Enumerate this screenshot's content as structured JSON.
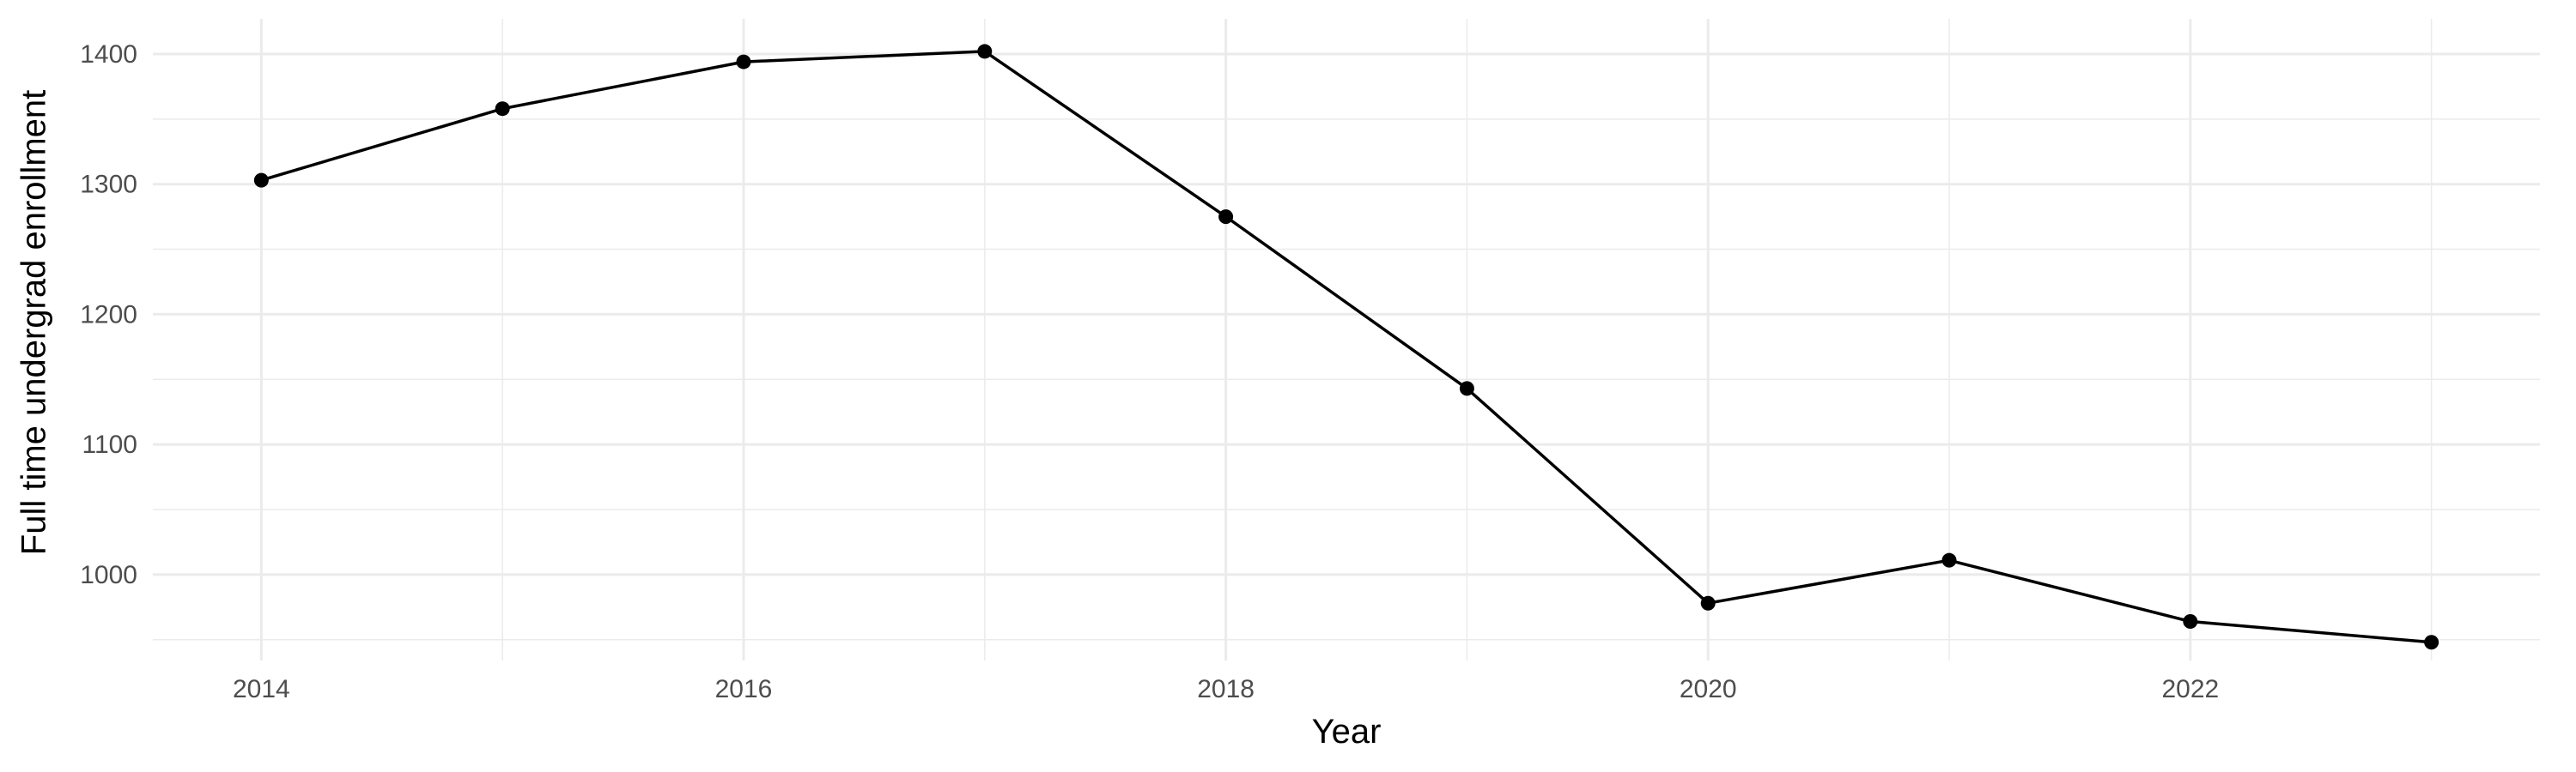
{
  "chart_data": {
    "type": "line",
    "title": "",
    "xlabel": "Year",
    "ylabel": "Full time undergrad enrollment",
    "x": [
      2014,
      2015,
      2016,
      2017,
      2018,
      2019,
      2020,
      2021,
      2022,
      2023
    ],
    "series": [
      {
        "values": [
          1303,
          1358,
          1394,
          1402,
          1275,
          1143,
          978,
          1011,
          964,
          948
        ]
      }
    ],
    "x_ticks": [
      2014,
      2016,
      2018,
      2020,
      2022
    ],
    "x_tick_labels": [
      "2014",
      "2016",
      "2018",
      "2020",
      "2022"
    ],
    "y_ticks": [
      1000,
      1100,
      1200,
      1300,
      1400
    ],
    "y_tick_labels": [
      "1000",
      "1100",
      "1200",
      "1300",
      "1400"
    ],
    "xlim": [
      2013.55,
      2023.45
    ],
    "ylim": [
      934,
      1427
    ],
    "grid": true,
    "line_color": "#000000",
    "point_color": "#000000",
    "grid_color": "#ebebeb"
  }
}
